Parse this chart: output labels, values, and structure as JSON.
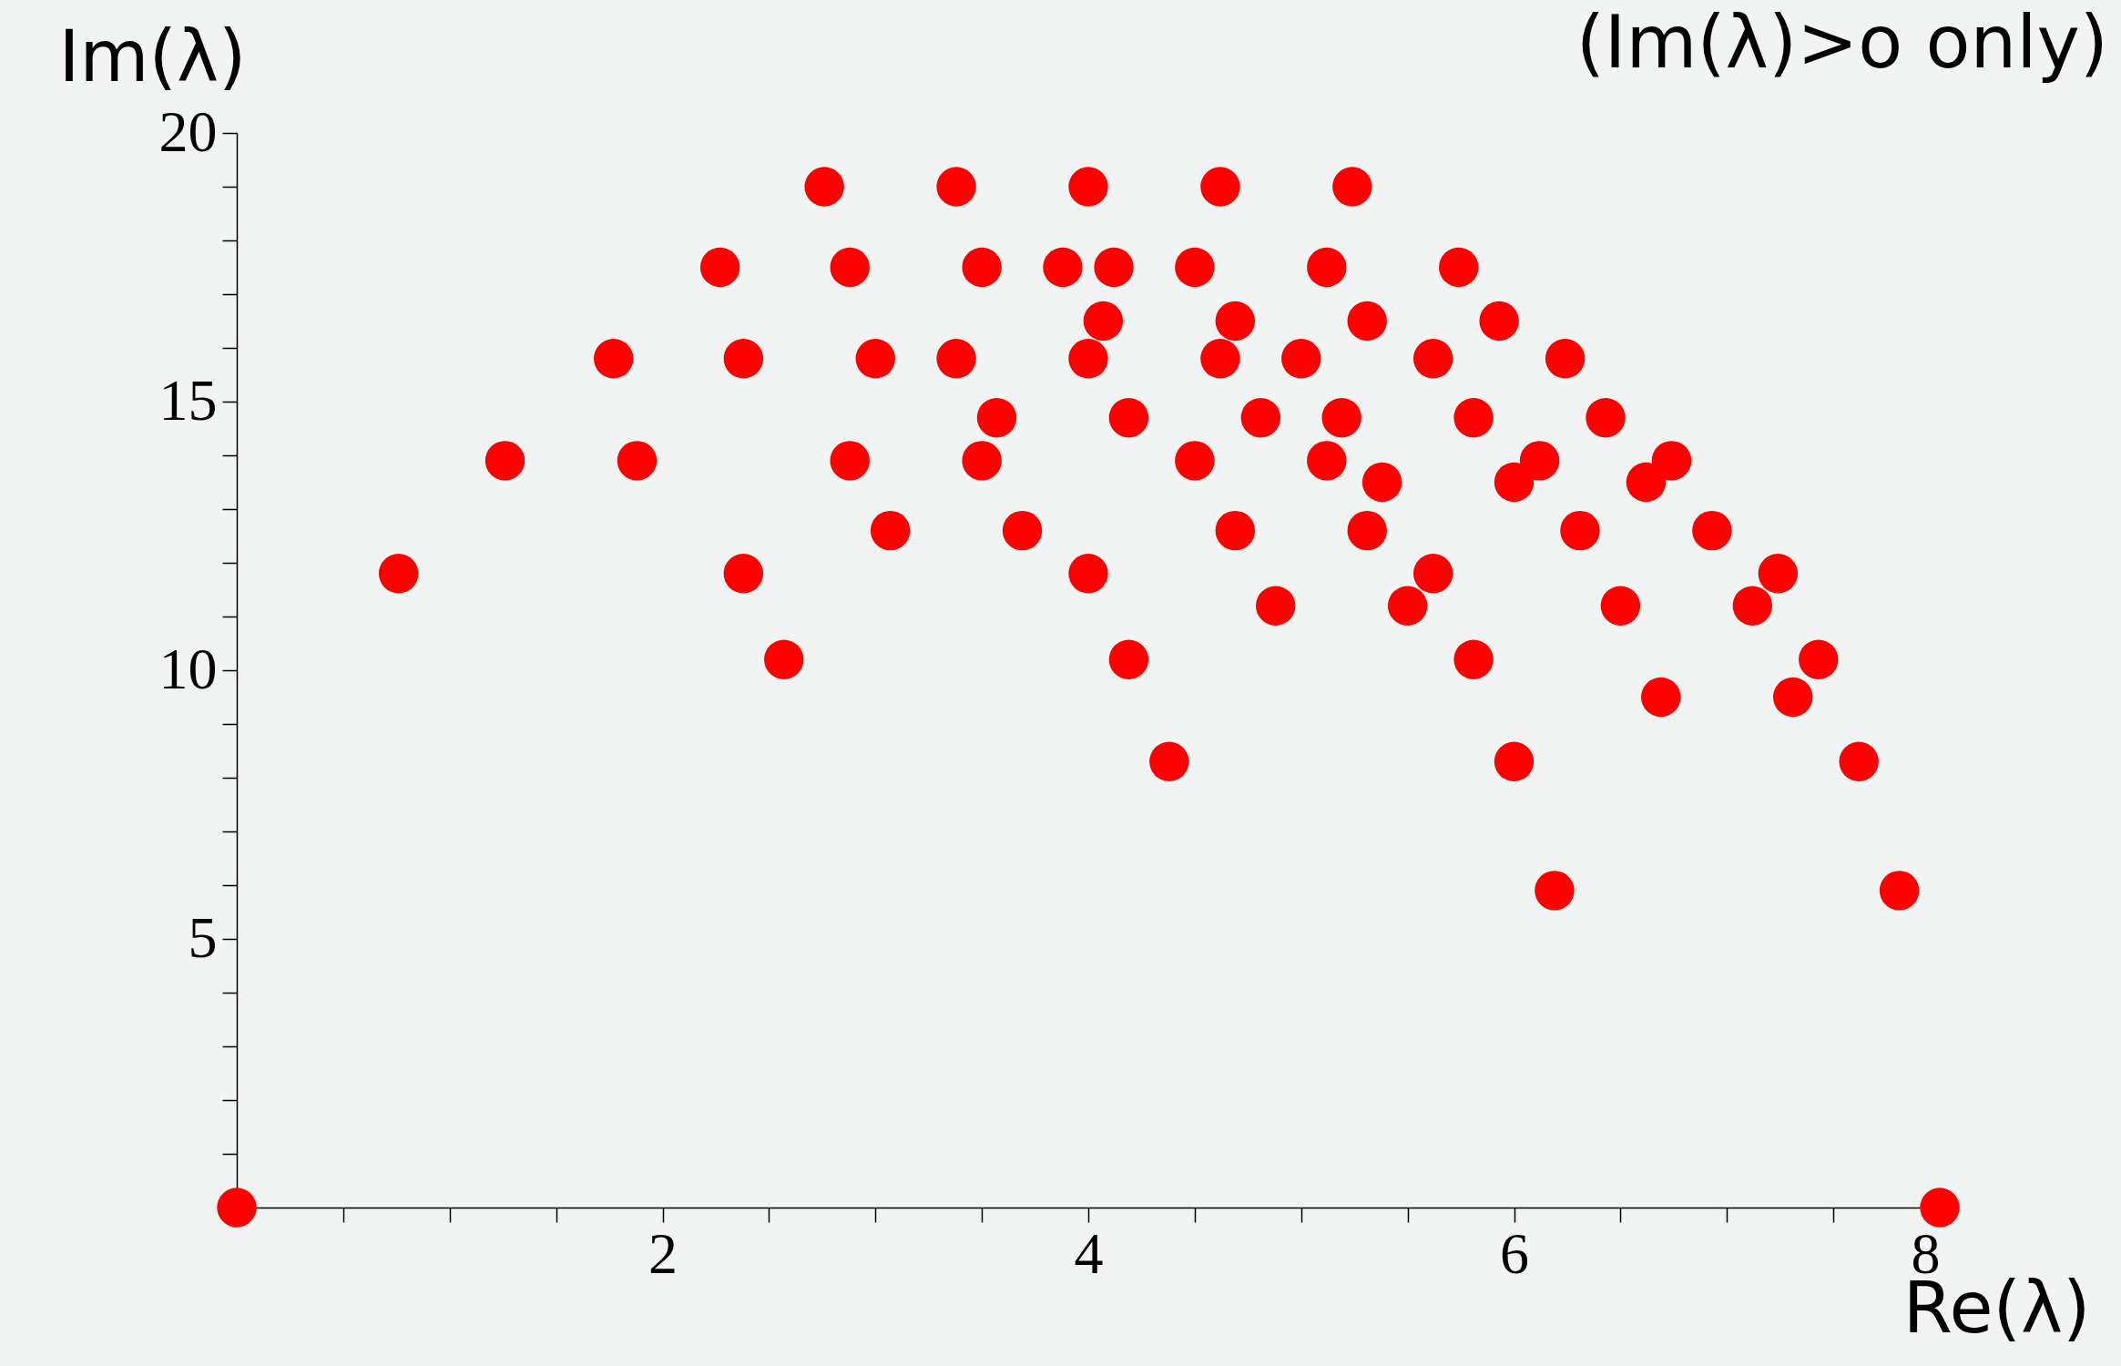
{
  "chart_data": {
    "type": "scatter",
    "title": "(Im(λ)>o only)",
    "xlabel": "Re(λ)",
    "ylabel": "Im(λ)",
    "marker": "circle",
    "xlim": [
      0,
      8
    ],
    "ylim": [
      0,
      20
    ],
    "xticks": [
      {
        "value": 0.5,
        "label": null
      },
      {
        "value": 1,
        "label": null
      },
      {
        "value": 1.5,
        "label": null
      },
      2,
      {
        "value": 2.5,
        "label": null
      },
      {
        "value": 3,
        "label": null
      },
      {
        "value": 3.5,
        "label": null
      },
      4,
      {
        "value": 4.5,
        "label": null
      },
      {
        "value": 5,
        "label": null
      },
      {
        "value": 5.5,
        "label": null
      },
      6,
      {
        "value": 6.5,
        "label": null
      },
      {
        "value": 7,
        "label": null
      },
      {
        "value": 7.5,
        "label": null
      },
      8
    ],
    "yticks": [
      {
        "value": 1,
        "label": null
      },
      {
        "value": 2,
        "label": null
      },
      {
        "value": 3,
        "label": null
      },
      {
        "value": 4,
        "label": null
      },
      5,
      {
        "value": 6,
        "label": null
      },
      {
        "value": 7,
        "label": null
      },
      {
        "value": 8,
        "label": null
      },
      {
        "value": 9,
        "label": null
      },
      10,
      {
        "value": 11,
        "label": null
      },
      {
        "value": 12,
        "label": null
      },
      {
        "value": 13,
        "label": null
      },
      {
        "value": 14,
        "label": null
      },
      15,
      {
        "value": 16,
        "label": null
      },
      {
        "value": 17,
        "label": null
      },
      {
        "value": 18,
        "label": null
      },
      {
        "value": 19,
        "label": null
      },
      20
    ],
    "series": [
      {
        "color": "#ff0000",
        "x": [
          2.76,
          3.38,
          4.0,
          4.62,
          5.24,
          2.27,
          2.88,
          3.5,
          3.88,
          4.12,
          4.5,
          5.12,
          5.74,
          4.07,
          4.69,
          5.31,
          5.93,
          1.77,
          2.38,
          3.0,
          3.38,
          4.0,
          4.62,
          5.0,
          5.62,
          6.24,
          3.57,
          4.19,
          4.81,
          5.19,
          5.81,
          6.43,
          1.26,
          1.88,
          2.88,
          3.5,
          4.5,
          5.12,
          6.12,
          6.74,
          5.38,
          6.0,
          6.62,
          3.07,
          3.69,
          4.69,
          5.31,
          6.31,
          6.93,
          0.76,
          2.38,
          4.0,
          5.62,
          7.24,
          4.88,
          5.5,
          6.5,
          7.12,
          2.57,
          4.19,
          5.81,
          7.43,
          6.69,
          7.31,
          4.38,
          6.0,
          7.62,
          6.19,
          7.81,
          0,
          8
        ],
        "values": [
          19,
          19,
          19,
          19,
          19,
          17.5,
          17.5,
          17.5,
          17.5,
          17.5,
          17.5,
          17.5,
          17.5,
          16.5,
          16.5,
          16.5,
          16.5,
          15.8,
          15.8,
          15.8,
          15.8,
          15.8,
          15.8,
          15.8,
          15.8,
          15.8,
          14.7,
          14.7,
          14.7,
          14.7,
          14.7,
          14.7,
          13.9,
          13.9,
          13.9,
          13.9,
          13.9,
          13.9,
          13.9,
          13.9,
          13.5,
          13.5,
          13.5,
          12.6,
          12.6,
          12.6,
          12.6,
          12.6,
          12.6,
          11.8,
          11.8,
          11.8,
          11.8,
          11.8,
          11.2,
          11.2,
          11.2,
          11.2,
          10.2,
          10.2,
          10.2,
          10.2,
          9.5,
          9.5,
          8.3,
          8.3,
          8.3,
          5.9,
          5.9,
          0,
          0
        ]
      }
    ]
  }
}
